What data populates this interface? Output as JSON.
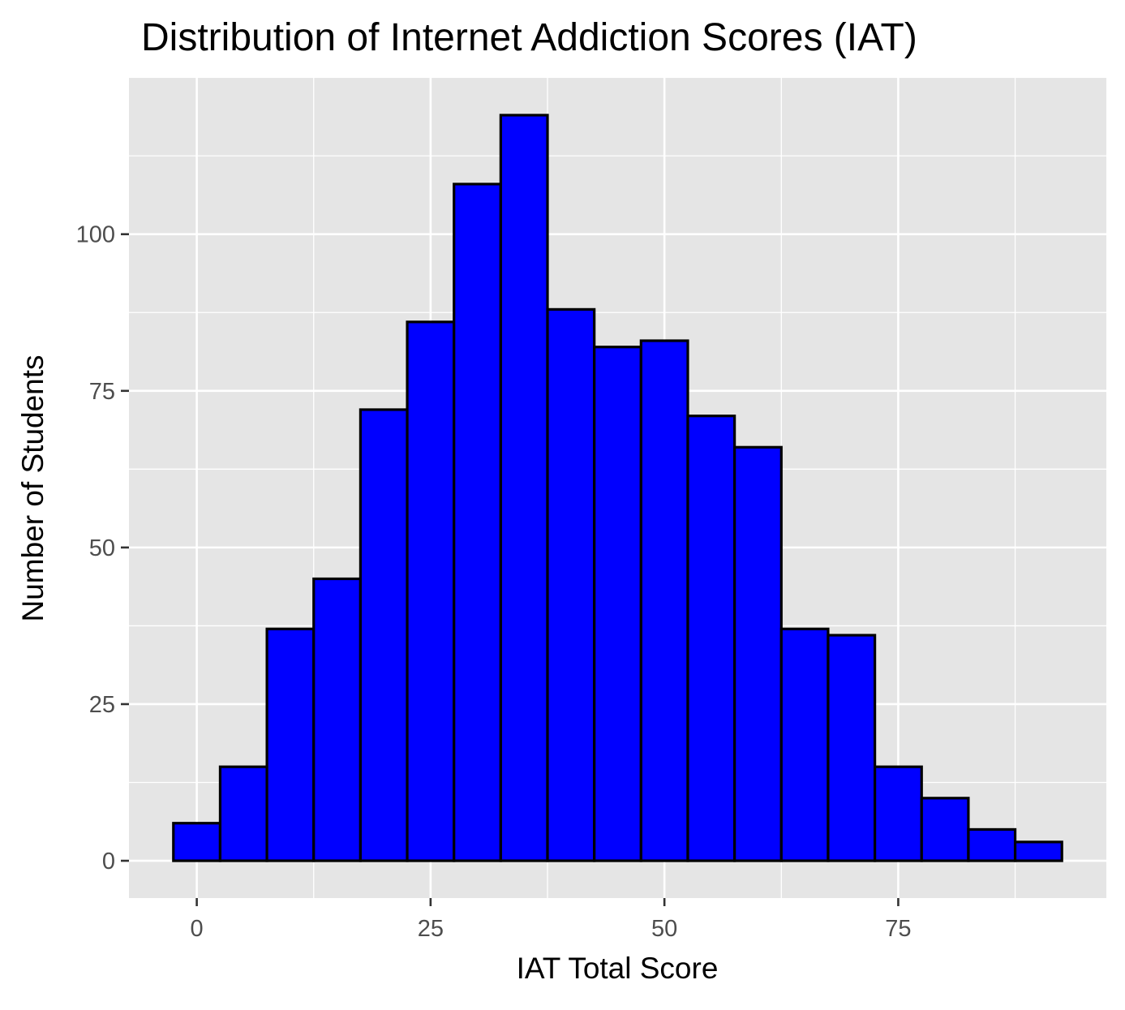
{
  "chart_data": {
    "type": "bar",
    "subtype": "histogram",
    "title": "Distribution of Internet Addiction Scores (IAT)",
    "xlabel": "IAT Total Score",
    "ylabel": "Number of Students",
    "bin_width": 5,
    "bins": [
      {
        "x_start": -2.5,
        "x_end": 2.5,
        "count": 6
      },
      {
        "x_start": 2.5,
        "x_end": 7.5,
        "count": 15
      },
      {
        "x_start": 7.5,
        "x_end": 12.5,
        "count": 37
      },
      {
        "x_start": 12.5,
        "x_end": 17.5,
        "count": 45
      },
      {
        "x_start": 17.5,
        "x_end": 22.5,
        "count": 72
      },
      {
        "x_start": 22.5,
        "x_end": 27.5,
        "count": 86
      },
      {
        "x_start": 27.5,
        "x_end": 32.5,
        "count": 108
      },
      {
        "x_start": 32.5,
        "x_end": 37.5,
        "count": 119
      },
      {
        "x_start": 37.5,
        "x_end": 42.5,
        "count": 88
      },
      {
        "x_start": 42.5,
        "x_end": 47.5,
        "count": 82
      },
      {
        "x_start": 47.5,
        "x_end": 52.5,
        "count": 83
      },
      {
        "x_start": 52.5,
        "x_end": 57.5,
        "count": 71
      },
      {
        "x_start": 57.5,
        "x_end": 62.5,
        "count": 66
      },
      {
        "x_start": 62.5,
        "x_end": 67.5,
        "count": 37
      },
      {
        "x_start": 67.5,
        "x_end": 72.5,
        "count": 36
      },
      {
        "x_start": 72.5,
        "x_end": 77.5,
        "count": 15
      },
      {
        "x_start": 77.5,
        "x_end": 82.5,
        "count": 10
      },
      {
        "x_start": 82.5,
        "x_end": 87.5,
        "count": 5
      },
      {
        "x_start": 87.5,
        "x_end": 92.5,
        "count": 3
      }
    ],
    "xlim": [
      -7.25,
      97.25
    ],
    "ylim": [
      -5.95,
      124.95
    ],
    "x_ticks": [
      0,
      25,
      50,
      75
    ],
    "y_ticks": [
      0,
      25,
      50,
      75,
      100
    ],
    "grid": true,
    "legend": "none",
    "colors": {
      "bar_fill": "#0000ff",
      "bar_outline": "#000000",
      "panel_background": "#e5e5e5",
      "grid_line": "#ffffff",
      "tick_text": "#4d4d4d"
    }
  }
}
